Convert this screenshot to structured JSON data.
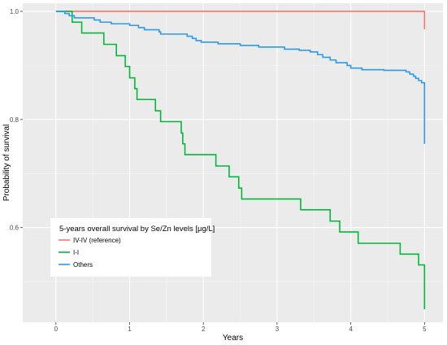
{
  "chart_data": {
    "type": "line",
    "step": true,
    "xlabel": "Years",
    "ylabel": "Probability of survival",
    "xlim": [
      -0.45,
      5.25
    ],
    "ylim": [
      0.425,
      1.015
    ],
    "xticks": [
      0,
      1,
      2,
      3,
      4,
      5
    ],
    "xtick_labels": [
      "0",
      "1",
      "2",
      "3",
      "4",
      "5"
    ],
    "yticks": [
      0.6,
      0.8,
      1.0
    ],
    "ytick_labels": [
      "0.6",
      "0.8",
      "1.0"
    ],
    "grid": true,
    "legend": {
      "title": "5-years overall survival by Se/Zn levels [μg/L]",
      "placement": "bottom-left"
    },
    "series": [
      {
        "name": "IV-IV (reference)",
        "color": "#F8766D",
        "points": [
          [
            0,
            1.0
          ],
          [
            5.0,
            1.0
          ],
          [
            5.0,
            0.967
          ]
        ]
      },
      {
        "name": "I-I",
        "color": "#00BA38",
        "points": [
          [
            0,
            1.0
          ],
          [
            0.22,
            1.0
          ],
          [
            0.22,
            0.98
          ],
          [
            0.35,
            0.98
          ],
          [
            0.35,
            0.96
          ],
          [
            0.65,
            0.96
          ],
          [
            0.65,
            0.939
          ],
          [
            0.82,
            0.939
          ],
          [
            0.82,
            0.918
          ],
          [
            0.94,
            0.918
          ],
          [
            0.94,
            0.898
          ],
          [
            1.0,
            0.898
          ],
          [
            1.0,
            0.877
          ],
          [
            1.07,
            0.877
          ],
          [
            1.07,
            0.857
          ],
          [
            1.1,
            0.857
          ],
          [
            1.1,
            0.837
          ],
          [
            1.35,
            0.837
          ],
          [
            1.35,
            0.816
          ],
          [
            1.42,
            0.816
          ],
          [
            1.42,
            0.796
          ],
          [
            1.7,
            0.796
          ],
          [
            1.7,
            0.775
          ],
          [
            1.72,
            0.775
          ],
          [
            1.72,
            0.755
          ],
          [
            1.75,
            0.755
          ],
          [
            1.75,
            0.735
          ],
          [
            2.17,
            0.735
          ],
          [
            2.17,
            0.714
          ],
          [
            2.35,
            0.714
          ],
          [
            2.35,
            0.694
          ],
          [
            2.48,
            0.694
          ],
          [
            2.48,
            0.673
          ],
          [
            2.52,
            0.673
          ],
          [
            2.52,
            0.653
          ],
          [
            3.32,
            0.653
          ],
          [
            3.32,
            0.633
          ],
          [
            3.72,
            0.633
          ],
          [
            3.72,
            0.612
          ],
          [
            3.85,
            0.612
          ],
          [
            3.85,
            0.592
          ],
          [
            4.1,
            0.592
          ],
          [
            4.1,
            0.571
          ],
          [
            4.67,
            0.571
          ],
          [
            4.67,
            0.551
          ],
          [
            4.92,
            0.551
          ],
          [
            4.92,
            0.531
          ],
          [
            5.0,
            0.531
          ],
          [
            5.0,
            0.449
          ]
        ]
      },
      {
        "name": "Others",
        "color": "#2E9BE8",
        "points": [
          [
            0,
            1.0
          ],
          [
            0.12,
            1.0
          ],
          [
            0.12,
            0.996
          ],
          [
            0.18,
            0.996
          ],
          [
            0.18,
            0.992
          ],
          [
            0.25,
            0.992
          ],
          [
            0.25,
            0.988
          ],
          [
            0.52,
            0.988
          ],
          [
            0.52,
            0.984
          ],
          [
            0.6,
            0.984
          ],
          [
            0.6,
            0.98
          ],
          [
            0.75,
            0.98
          ],
          [
            0.75,
            0.977
          ],
          [
            1.0,
            0.977
          ],
          [
            1.0,
            0.974
          ],
          [
            1.12,
            0.974
          ],
          [
            1.12,
            0.97
          ],
          [
            1.2,
            0.97
          ],
          [
            1.2,
            0.966
          ],
          [
            1.4,
            0.966
          ],
          [
            1.4,
            0.962
          ],
          [
            1.42,
            0.962
          ],
          [
            1.42,
            0.958
          ],
          [
            1.78,
            0.958
          ],
          [
            1.78,
            0.954
          ],
          [
            1.85,
            0.954
          ],
          [
            1.85,
            0.95
          ],
          [
            1.9,
            0.95
          ],
          [
            1.9,
            0.946
          ],
          [
            1.97,
            0.946
          ],
          [
            1.97,
            0.943
          ],
          [
            2.2,
            0.943
          ],
          [
            2.2,
            0.94
          ],
          [
            2.5,
            0.94
          ],
          [
            2.5,
            0.937
          ],
          [
            2.75,
            0.937
          ],
          [
            2.75,
            0.934
          ],
          [
            3.1,
            0.934
          ],
          [
            3.1,
            0.93
          ],
          [
            3.3,
            0.93
          ],
          [
            3.3,
            0.928
          ],
          [
            3.45,
            0.928
          ],
          [
            3.45,
            0.925
          ],
          [
            3.55,
            0.925
          ],
          [
            3.55,
            0.92
          ],
          [
            3.62,
            0.92
          ],
          [
            3.62,
            0.915
          ],
          [
            3.72,
            0.915
          ],
          [
            3.72,
            0.91
          ],
          [
            3.8,
            0.91
          ],
          [
            3.8,
            0.905
          ],
          [
            3.95,
            0.905
          ],
          [
            3.95,
            0.9
          ],
          [
            4.0,
            0.9
          ],
          [
            4.0,
            0.895
          ],
          [
            4.15,
            0.895
          ],
          [
            4.15,
            0.892
          ],
          [
            4.45,
            0.892
          ],
          [
            4.45,
            0.891
          ],
          [
            4.75,
            0.891
          ],
          [
            4.75,
            0.888
          ],
          [
            4.8,
            0.888
          ],
          [
            4.8,
            0.884
          ],
          [
            4.85,
            0.884
          ],
          [
            4.85,
            0.88
          ],
          [
            4.88,
            0.88
          ],
          [
            4.88,
            0.876
          ],
          [
            4.92,
            0.876
          ],
          [
            4.92,
            0.872
          ],
          [
            4.96,
            0.872
          ],
          [
            4.96,
            0.868
          ],
          [
            5.0,
            0.868
          ],
          [
            5.0,
            0.755
          ]
        ]
      }
    ]
  }
}
